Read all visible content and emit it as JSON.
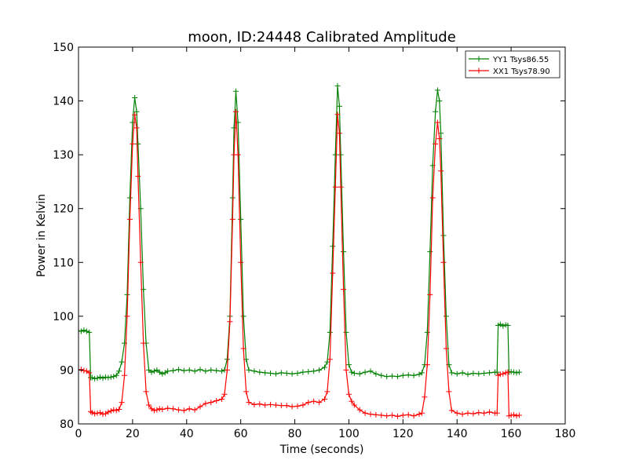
{
  "chart_data": {
    "type": "line",
    "title": "moon, ID:24448 Calibrated Amplitude",
    "xlabel": "Time (seconds)",
    "ylabel": "Power in Kelvin",
    "xlim": [
      0,
      180
    ],
    "ylim": [
      80,
      150
    ],
    "xticks": [
      "0",
      "20",
      "40",
      "60",
      "80",
      "100",
      "120",
      "140",
      "160",
      "180"
    ],
    "yticks": [
      "80",
      "90",
      "100",
      "110",
      "120",
      "130",
      "140",
      "150"
    ],
    "grid": false,
    "legend_position": "top-right",
    "marker": "+",
    "series": [
      {
        "name": "YY1 Tsys86.55",
        "color": "#008000",
        "points": [
          [
            0,
            97.3
          ],
          [
            1,
            97.2
          ],
          [
            2,
            97.4
          ],
          [
            3,
            97.2
          ],
          [
            4,
            97.0
          ],
          [
            4.5,
            88.6
          ],
          [
            5,
            88.6
          ],
          [
            6,
            88.4
          ],
          [
            7,
            88.5
          ],
          [
            8,
            88.7
          ],
          [
            9,
            88.5
          ],
          [
            10,
            88.7
          ],
          [
            11,
            88.6
          ],
          [
            12,
            88.7
          ],
          [
            13,
            88.8
          ],
          [
            14,
            89.0
          ],
          [
            15,
            89.8
          ],
          [
            16,
            91.5
          ],
          [
            17,
            95.0
          ],
          [
            18,
            104.0
          ],
          [
            19,
            122.0
          ],
          [
            20,
            136.0
          ],
          [
            20.8,
            140.6
          ],
          [
            21.5,
            138.0
          ],
          [
            22,
            132.0
          ],
          [
            23,
            120.0
          ],
          [
            24,
            105.0
          ],
          [
            25,
            95.0
          ],
          [
            26,
            90.0
          ],
          [
            27,
            89.6
          ],
          [
            28,
            89.8
          ],
          [
            29,
            90.0
          ],
          [
            30,
            89.6
          ],
          [
            31,
            89.3
          ],
          [
            32,
            89.5
          ],
          [
            33,
            89.8
          ],
          [
            35,
            89.9
          ],
          [
            37,
            90.1
          ],
          [
            39,
            89.9
          ],
          [
            41,
            90.0
          ],
          [
            43,
            89.8
          ],
          [
            45,
            90.1
          ],
          [
            47,
            89.8
          ],
          [
            49,
            90.0
          ],
          [
            51,
            89.9
          ],
          [
            53,
            89.8
          ],
          [
            54,
            90.0
          ],
          [
            55,
            92.0
          ],
          [
            56,
            100.0
          ],
          [
            57,
            122.0
          ],
          [
            57.5,
            135.0
          ],
          [
            58.2,
            141.8
          ],
          [
            59,
            136.0
          ],
          [
            60,
            118.0
          ],
          [
            61,
            100.0
          ],
          [
            62,
            92.0
          ],
          [
            63,
            90.0
          ],
          [
            65,
            89.8
          ],
          [
            67,
            89.6
          ],
          [
            69,
            89.5
          ],
          [
            71,
            89.4
          ],
          [
            73,
            89.3
          ],
          [
            75,
            89.5
          ],
          [
            77,
            89.4
          ],
          [
            79,
            89.3
          ],
          [
            81,
            89.4
          ],
          [
            83,
            89.6
          ],
          [
            85,
            89.7
          ],
          [
            87,
            89.8
          ],
          [
            89,
            90.0
          ],
          [
            91,
            90.5
          ],
          [
            92,
            91.5
          ],
          [
            93,
            97.0
          ],
          [
            94,
            113.0
          ],
          [
            95,
            130.0
          ],
          [
            95.8,
            142.8
          ],
          [
            96.5,
            139.0
          ],
          [
            97,
            130.0
          ],
          [
            98,
            112.0
          ],
          [
            99,
            97.0
          ],
          [
            100,
            91.0
          ],
          [
            101,
            89.6
          ],
          [
            102,
            89.4
          ],
          [
            104,
            89.3
          ],
          [
            106,
            89.6
          ],
          [
            108,
            89.8
          ],
          [
            110,
            89.3
          ],
          [
            112,
            89.0
          ],
          [
            114,
            88.8
          ],
          [
            116,
            88.9
          ],
          [
            118,
            88.8
          ],
          [
            120,
            89.0
          ],
          [
            122,
            89.1
          ],
          [
            124,
            89.0
          ],
          [
            126,
            89.2
          ],
          [
            127,
            89.5
          ],
          [
            128,
            91.0
          ],
          [
            129,
            97.0
          ],
          [
            130,
            112.0
          ],
          [
            131,
            128.0
          ],
          [
            132,
            138.0
          ],
          [
            132.8,
            142.0
          ],
          [
            133.5,
            140.0
          ],
          [
            134,
            134.0
          ],
          [
            135,
            115.0
          ],
          [
            136,
            100.0
          ],
          [
            137,
            91.0
          ],
          [
            138,
            89.5
          ],
          [
            140,
            89.3
          ],
          [
            142,
            89.5
          ],
          [
            144,
            89.2
          ],
          [
            146,
            89.4
          ],
          [
            148,
            89.3
          ],
          [
            150,
            89.4
          ],
          [
            152,
            89.5
          ],
          [
            154,
            89.6
          ],
          [
            154.8,
            89.6
          ],
          [
            155.2,
            98.3
          ],
          [
            156,
            98.5
          ],
          [
            157,
            98.2
          ],
          [
            158,
            98.4
          ],
          [
            158.8,
            98.3
          ],
          [
            159.2,
            89.6
          ],
          [
            160,
            89.7
          ],
          [
            161,
            89.6
          ],
          [
            162,
            89.5
          ],
          [
            163,
            89.6
          ]
        ]
      },
      {
        "name": "XX1 Tsys78.90",
        "color": "#ff0000",
        "points": [
          [
            0,
            90.0
          ],
          [
            1,
            90.1
          ],
          [
            2,
            89.9
          ],
          [
            3,
            89.8
          ],
          [
            4,
            89.5
          ],
          [
            4.5,
            82.3
          ],
          [
            5,
            82.1
          ],
          [
            6,
            81.9
          ],
          [
            7,
            82.0
          ],
          [
            8,
            82.1
          ],
          [
            9,
            81.8
          ],
          [
            10,
            81.9
          ],
          [
            11,
            82.2
          ],
          [
            12,
            82.4
          ],
          [
            13,
            82.6
          ],
          [
            14,
            82.5
          ],
          [
            15,
            82.7
          ],
          [
            16,
            84.0
          ],
          [
            17,
            89.0
          ],
          [
            18,
            100.0
          ],
          [
            19,
            118.0
          ],
          [
            20,
            132.0
          ],
          [
            20.8,
            137.4
          ],
          [
            21.5,
            135.0
          ],
          [
            22,
            126.0
          ],
          [
            23,
            110.0
          ],
          [
            24,
            95.0
          ],
          [
            25,
            86.0
          ],
          [
            26,
            83.5
          ],
          [
            27,
            82.8
          ],
          [
            28,
            82.5
          ],
          [
            29,
            82.6
          ],
          [
            30,
            82.8
          ],
          [
            31,
            82.7
          ],
          [
            33,
            82.9
          ],
          [
            35,
            82.8
          ],
          [
            37,
            82.6
          ],
          [
            39,
            82.5
          ],
          [
            41,
            82.8
          ],
          [
            43,
            82.6
          ],
          [
            45,
            83.2
          ],
          [
            47,
            83.8
          ],
          [
            49,
            84.0
          ],
          [
            51,
            84.3
          ],
          [
            53,
            84.6
          ],
          [
            54,
            85.5
          ],
          [
            55,
            90.0
          ],
          [
            56,
            99.0
          ],
          [
            57,
            118.0
          ],
          [
            57.5,
            130.0
          ],
          [
            58.2,
            138.0
          ],
          [
            59,
            130.0
          ],
          [
            60,
            110.0
          ],
          [
            61,
            94.0
          ],
          [
            62,
            86.0
          ],
          [
            63,
            84.0
          ],
          [
            65,
            83.6
          ],
          [
            67,
            83.7
          ],
          [
            69,
            83.5
          ],
          [
            71,
            83.6
          ],
          [
            73,
            83.5
          ],
          [
            75,
            83.4
          ],
          [
            77,
            83.4
          ],
          [
            79,
            83.2
          ],
          [
            81,
            83.3
          ],
          [
            83,
            83.5
          ],
          [
            85,
            84.0
          ],
          [
            87,
            84.2
          ],
          [
            89,
            84.0
          ],
          [
            91,
            84.6
          ],
          [
            92,
            86.0
          ],
          [
            93,
            92.0
          ],
          [
            94,
            108.0
          ],
          [
            95,
            124.0
          ],
          [
            95.8,
            137.5
          ],
          [
            96.5,
            134.0
          ],
          [
            97,
            124.0
          ],
          [
            98,
            105.0
          ],
          [
            99,
            90.0
          ],
          [
            100,
            85.5
          ],
          [
            101,
            84.2
          ],
          [
            102,
            83.5
          ],
          [
            104,
            82.6
          ],
          [
            106,
            82.0
          ],
          [
            108,
            81.8
          ],
          [
            110,
            81.7
          ],
          [
            112,
            81.6
          ],
          [
            114,
            81.5
          ],
          [
            116,
            81.6
          ],
          [
            118,
            81.4
          ],
          [
            120,
            81.6
          ],
          [
            122,
            81.7
          ],
          [
            124,
            81.5
          ],
          [
            126,
            81.8
          ],
          [
            127,
            82.0
          ],
          [
            128,
            85.0
          ],
          [
            129,
            91.0
          ],
          [
            130,
            104.0
          ],
          [
            131,
            122.0
          ],
          [
            132,
            132.0
          ],
          [
            132.8,
            136.0
          ],
          [
            133.5,
            133.0
          ],
          [
            134,
            127.0
          ],
          [
            135,
            110.0
          ],
          [
            136,
            94.0
          ],
          [
            137,
            86.0
          ],
          [
            138,
            82.5
          ],
          [
            140,
            82.0
          ],
          [
            142,
            81.8
          ],
          [
            144,
            82.0
          ],
          [
            146,
            81.9
          ],
          [
            148,
            82.1
          ],
          [
            150,
            82.0
          ],
          [
            152,
            82.2
          ],
          [
            154,
            82.0
          ],
          [
            154.8,
            82.0
          ],
          [
            155.2,
            89.0
          ],
          [
            156,
            89.2
          ],
          [
            157,
            89.3
          ],
          [
            158,
            89.5
          ],
          [
            158.8,
            89.6
          ],
          [
            159.2,
            81.5
          ],
          [
            160,
            81.6
          ],
          [
            161,
            81.7
          ],
          [
            162,
            81.5
          ],
          [
            163,
            81.6
          ]
        ]
      }
    ]
  }
}
